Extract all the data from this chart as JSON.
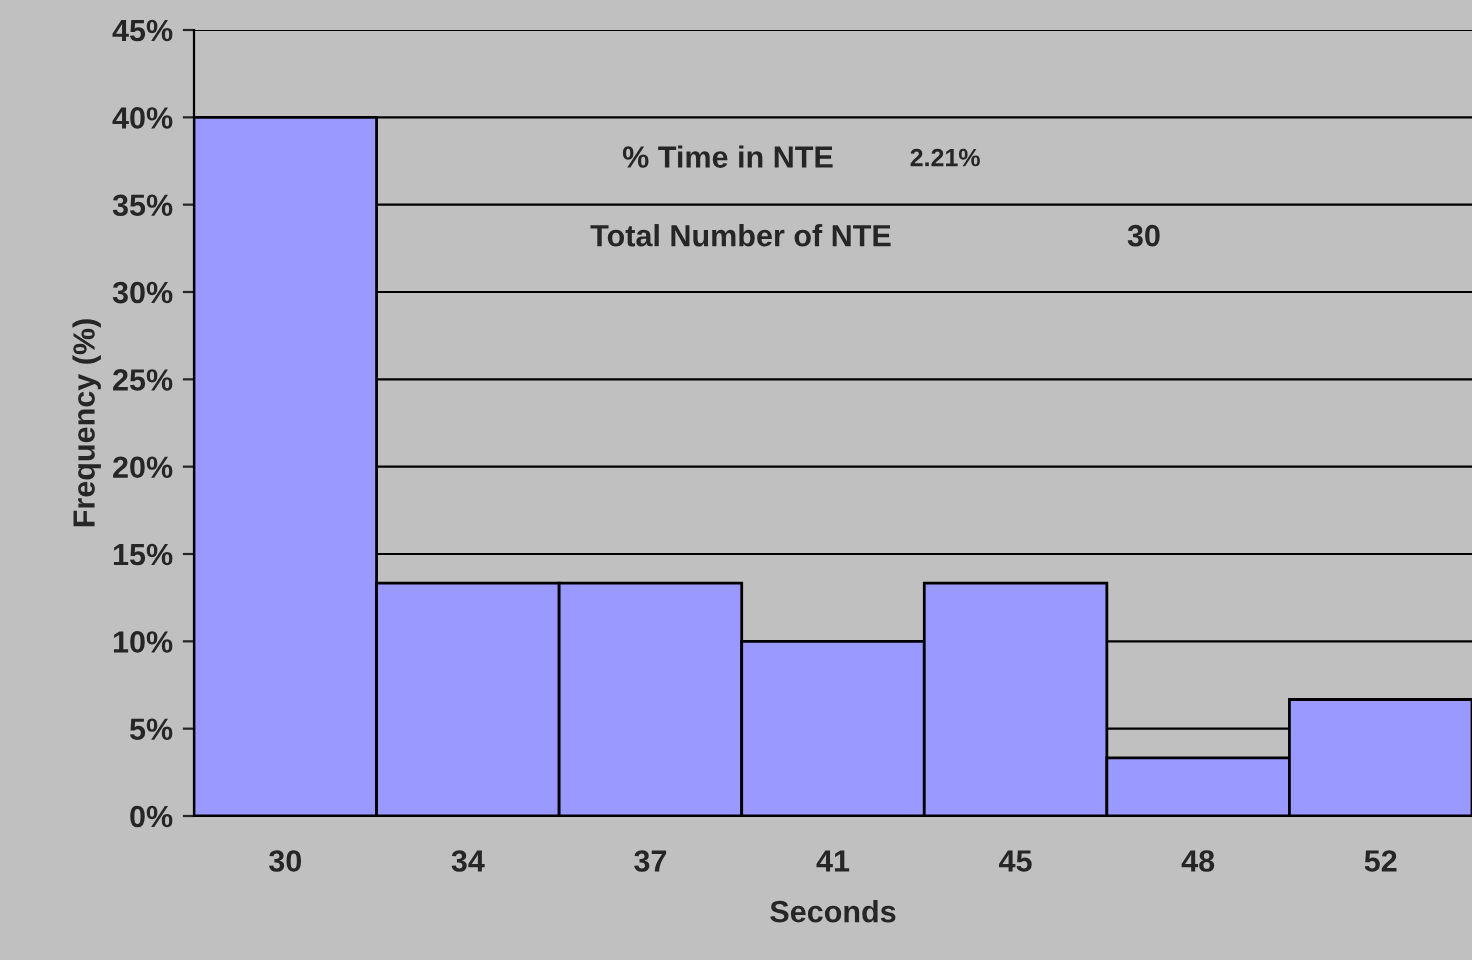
{
  "chart_data": {
    "type": "bar",
    "xlabel": "Seconds",
    "ylabel": "Frequency (%)",
    "categories": [
      "30",
      "34",
      "37",
      "41",
      "45",
      "48",
      "52"
    ],
    "values": [
      40,
      13.33,
      13.33,
      10,
      13.33,
      3.33,
      6.67
    ],
    "color": "#9999ff",
    "ylim": [
      0,
      45
    ],
    "yticks": [
      {
        "value": 0,
        "label": "0%"
      },
      {
        "value": 5,
        "label": "5%"
      },
      {
        "value": 10,
        "label": "10%"
      },
      {
        "value": 15,
        "label": "15%"
      },
      {
        "value": 20,
        "label": "20%"
      },
      {
        "value": 25,
        "label": "25%"
      },
      {
        "value": 30,
        "label": "30%"
      },
      {
        "value": 35,
        "label": "35%"
      },
      {
        "value": 40,
        "label": "40%"
      },
      {
        "value": 45,
        "label": "45%"
      }
    ],
    "grid": "y",
    "legend": false,
    "annotations": [
      "% Time in NTE",
      "2.21%",
      "Total Number of NTE",
      "30"
    ]
  }
}
